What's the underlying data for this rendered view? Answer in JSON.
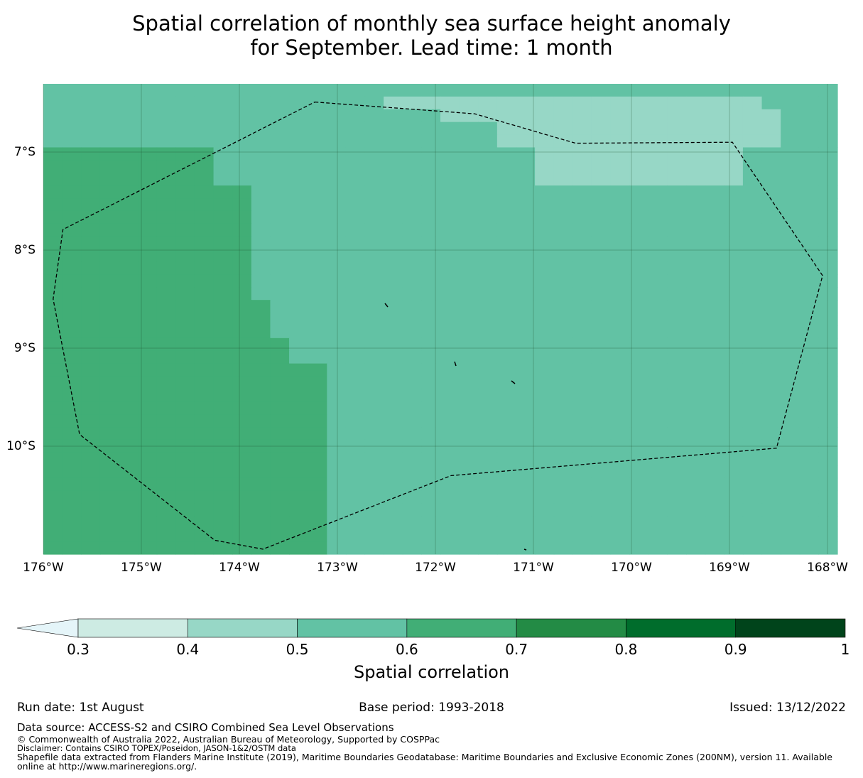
{
  "title": {
    "line1": "Spatial correlation of monthly sea surface height anomaly",
    "line2": "for September. Lead time: 1 month"
  },
  "map": {
    "lon_range": [
      -176,
      -167.9
    ],
    "lat_range": [
      -6.3,
      -11.1
    ],
    "grid_step_deg": 0.25,
    "lat_labels": [
      "7°S",
      "8°S",
      "9°S",
      "10°S"
    ],
    "lat_values": [
      -7,
      -8,
      -9,
      -10
    ],
    "lon_labels": [
      "176°W",
      "175°W",
      "174°W",
      "173°W",
      "172°W",
      "171°W",
      "170°W",
      "169°W",
      "168°W"
    ],
    "lon_values": [
      -176,
      -175,
      -174,
      -173,
      -172,
      -171,
      -170,
      -169,
      -168
    ],
    "correlation_rows": [
      "555555555555555555555555555555555555555555",
      "555555555555555555444444444444444444445555",
      "555555555555555555555444444444444444444555",
      "555555555555555555555555444444444444444555",
      "555555555555555555555555444444444444444555",
      "666666666555555555555555554444444444455555",
      "666666666555555555555555554444444444455555",
      "666666666555555555555555554444444444455555",
      "666666666665555555555555555555555555555555",
      "666666666665555555555555555555555555555555",
      "666666666665555555555555555555555555555555",
      "666666666665555555555555555555555555555555",
      "666666666665555555555555555555555555555555",
      "666666666665555555555555555555555555555555",
      "666666666665555555555555555555555555555555",
      "666666666665555555555555555555555555555555",
      "666666666665555555555555555555555555555555",
      "666666666666555555555555555555555555555555",
      "666666666666555555555555555555555555555555",
      "666666666666555555555555555555555555555555",
      "666666666666655555555555555555555555555555",
      "666666666666655555555555555555555555555555",
      "666666666666666555555555555555555555555555",
      "666666666666666555555555555555555555555555",
      "666666666666666555555555555555555555555555",
      "666666666666666555555555555555555555555555",
      "666666666666666555555555555555555555555555",
      "666666666666666555555555555555555555555555",
      "666666666666666555555555555555555555555555",
      "666666666666666555555555555555555555555555",
      "666666666666666555555555555555555555555555",
      "666666666666666555555555555555555555555555",
      "666666666666666555555555555555555555555555",
      "666666666666666555555555555555555555555555",
      "666666666666666555555555555555555555555555",
      "666666666666666555555555555555555555555555",
      "666666666666666555555555555555555555555555"
    ],
    "eez_outline_lonlat": [
      [
        -173.23,
        -6.49
      ],
      [
        -171.6,
        -6.61
      ],
      [
        -170.57,
        -6.91
      ],
      [
        -168.97,
        -6.9
      ],
      [
        -168.05,
        -8.26
      ],
      [
        -168.52,
        -10.02
      ],
      [
        -171.84,
        -10.3
      ],
      [
        -173.76,
        -11.05
      ],
      [
        -174.25,
        -10.96
      ],
      [
        -175.63,
        -9.88
      ],
      [
        -175.9,
        -8.5
      ],
      [
        -175.8,
        -7.79
      ],
      [
        -173.23,
        -6.49
      ]
    ]
  },
  "colorbar": {
    "ticks": [
      "0.3",
      "0.4",
      "0.5",
      "0.6",
      "0.7",
      "0.8",
      "0.9",
      "1"
    ],
    "tick_values": [
      0.3,
      0.4,
      0.5,
      0.6,
      0.7,
      0.8,
      0.9,
      1.0
    ],
    "colors": [
      "#cdebe3",
      "#97d7c6",
      "#62c2a4",
      "#41ae76",
      "#238b45",
      "#006d2c",
      "#00441b"
    ],
    "under_color": "#e5f5f9",
    "label": "Spatial correlation"
  },
  "footer": {
    "run_date": "Run date: 1st August",
    "base_period": "Base period: 1993-2018",
    "issued": "Issued: 13/12/2022",
    "data_source": "Data source: ACCESS-S2 and CSIRO Combined Sea Level Observations",
    "copyright": "© Commonwealth of Australia 2022, Australian Bureau of Meteorology, Supported by COSPPac",
    "disclaimer": "Disclaimer: Contains CSIRO TOPEX/Poseidon, JASON-1&2/OSTM data",
    "shapefile": "Shapefile data extracted from Flanders Marine Institute (2019), Maritime Boundaries Geodatabase: Maritime Boundaries and Exclusive Economic Zones (200NM), version 11. Available online at http://www.marineregions.org/."
  }
}
